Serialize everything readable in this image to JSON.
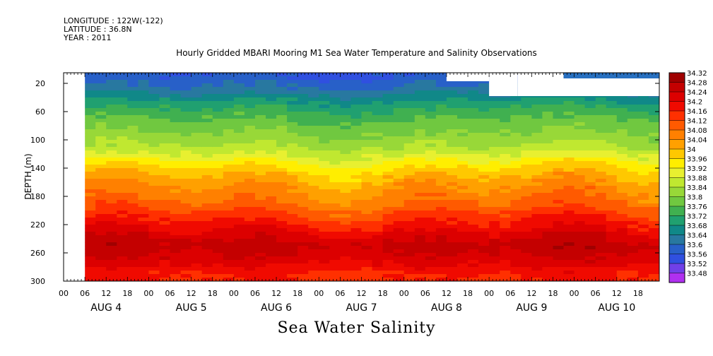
{
  "header": {
    "longitude": "LONGITUDE : 122W(-122)",
    "latitude": "LATITUDE : 36.8N",
    "year": "YEAR : 2011"
  },
  "chart_data": {
    "type": "heatmap",
    "title": "Hourly Gridded MBARI Mooring M1 Sea Water Temperature and Salinity Observations",
    "xlabel": "Sea Water Salinity",
    "ylabel": "DEPTH (m)",
    "x_range_hours": [
      0,
      168
    ],
    "ylim": [
      300,
      5
    ],
    "y_ticks": [
      20,
      60,
      100,
      140,
      180,
      220,
      260,
      300
    ],
    "x_hour_ticks": [
      "00",
      "06",
      "12",
      "18",
      "00",
      "06",
      "12",
      "18",
      "00",
      "06",
      "12",
      "18",
      "00",
      "06",
      "12",
      "18",
      "00",
      "06",
      "12",
      "18",
      "00",
      "06",
      "12",
      "18",
      "00",
      "06",
      "12",
      "18"
    ],
    "x_day_labels": [
      "AUG  4",
      "AUG  5",
      "AUG  6",
      "AUG  7",
      "AUG  8",
      "AUG  9",
      "AUG 10"
    ],
    "colorbar_ticks": [
      "34.32",
      "34.28",
      "34.24",
      "34.2",
      "34.16",
      "34.12",
      "34.08",
      "34.04",
      "34",
      "33.96",
      "33.92",
      "33.88",
      "33.84",
      "33.8",
      "33.76",
      "33.72",
      "33.68",
      "33.64",
      "33.6",
      "33.56",
      "33.52",
      "33.48"
    ],
    "colorbar_colors": [
      "#a00000",
      "#c40000",
      "#dc0000",
      "#f00a00",
      "#ff3000",
      "#ff5a00",
      "#ff8000",
      "#ffa000",
      "#ffc800",
      "#ffee00",
      "#e8f030",
      "#c0e830",
      "#98d838",
      "#70c840",
      "#40b050",
      "#20a070",
      "#108888",
      "#2878a0",
      "#2860c8",
      "#3050e0",
      "#7040e8",
      "#b030f0"
    ],
    "profile": [
      {
        "depth": 10,
        "salinity": 33.6
      },
      {
        "depth": 30,
        "salinity": 33.66
      },
      {
        "depth": 50,
        "salinity": 33.74
      },
      {
        "depth": 70,
        "salinity": 33.8
      },
      {
        "depth": 90,
        "salinity": 33.84
      },
      {
        "depth": 110,
        "salinity": 33.88
      },
      {
        "depth": 130,
        "salinity": 33.96
      },
      {
        "depth": 150,
        "salinity": 34.04
      },
      {
        "depth": 170,
        "salinity": 34.08
      },
      {
        "depth": 190,
        "salinity": 34.12
      },
      {
        "depth": 210,
        "salinity": 34.18
      },
      {
        "depth": 230,
        "salinity": 34.24
      },
      {
        "depth": 250,
        "salinity": 34.3
      },
      {
        "depth": 270,
        "salinity": 34.26
      },
      {
        "depth": 290,
        "salinity": 34.2
      }
    ],
    "data_start_hour": 6
  }
}
